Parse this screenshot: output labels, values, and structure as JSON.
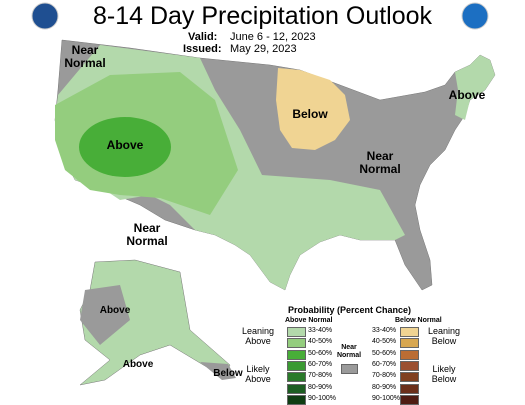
{
  "header": {
    "title": "8-14 Day Precipitation Outlook",
    "valid_label": "Valid:",
    "valid": "June 6 - 12, 2023",
    "issued_label": "Issued:",
    "issued": "May 29, 2023"
  },
  "regions": [
    {
      "label": "Near Normal"
    },
    {
      "label": "Above"
    },
    {
      "label": "Below"
    },
    {
      "label": "Near Normal"
    },
    {
      "label": "Above"
    },
    {
      "label": "Near Normal"
    },
    {
      "label": "Above"
    },
    {
      "label": "Above"
    },
    {
      "label": "Below"
    }
  ],
  "legend": {
    "title": "Probability (Percent Chance)",
    "above_header": "Above Normal",
    "below_header": "Below Normal",
    "near_header": "Near Normal",
    "leaning_above": "Leaning Above",
    "likely_above": "Likely Above",
    "leaning_below": "Leaning Below",
    "likely_below": "Likely Below",
    "near_color": "#9a9a9a",
    "above": [
      {
        "range": "33-40%",
        "color": "#b3d9ab"
      },
      {
        "range": "40-50%",
        "color": "#94cd7e"
      },
      {
        "range": "50-60%",
        "color": "#48ae38"
      },
      {
        "range": "60-70%",
        "color": "#3a9a32"
      },
      {
        "range": "70-80%",
        "color": "#2a7a2a"
      },
      {
        "range": "80-90%",
        "color": "#1d5e22"
      },
      {
        "range": "90-100%",
        "color": "#0f3d12"
      }
    ],
    "below": [
      {
        "range": "33-40%",
        "color": "#f0d493"
      },
      {
        "range": "40-50%",
        "color": "#d8a750"
      },
      {
        "range": "50-60%",
        "color": "#bb6d33"
      },
      {
        "range": "60-70%",
        "color": "#9b5031"
      },
      {
        "range": "70-80%",
        "color": "#804020"
      },
      {
        "range": "80-90%",
        "color": "#6b2f1a"
      },
      {
        "range": "90-100%",
        "color": "#4f1c12"
      }
    ]
  }
}
